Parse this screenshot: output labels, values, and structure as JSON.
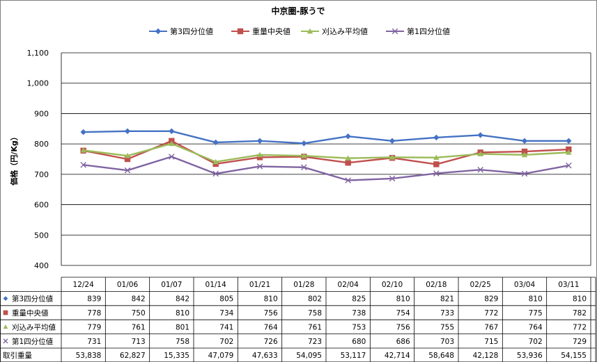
{
  "chart_data": {
    "type": "line",
    "title": "中京圏-豚うで",
    "ylabel": "価格（円/Kg）",
    "ylim": [
      400,
      1100
    ],
    "yticks": [
      400,
      500,
      600,
      700,
      800,
      900,
      1000,
      1100
    ],
    "ytick_labels": [
      "400",
      "500",
      "600",
      "700",
      "800",
      "900",
      "1,000",
      "1,100"
    ],
    "grid": true,
    "legend_position": "top",
    "categories": [
      "12/24",
      "01/06",
      "01/07",
      "01/14",
      "01/21",
      "01/28",
      "02/04",
      "02/10",
      "02/18",
      "02/25",
      "03/04",
      "03/11"
    ],
    "series": [
      {
        "name": "第3四分位値",
        "color": "#4472c4",
        "marker": "diamond",
        "values": [
          839,
          842,
          842,
          805,
          810,
          802,
          825,
          810,
          821,
          829,
          810,
          810
        ]
      },
      {
        "name": "重量中央値",
        "color": "#c0504d",
        "marker": "square",
        "values": [
          778,
          750,
          810,
          734,
          756,
          758,
          738,
          754,
          733,
          772,
          775,
          782
        ]
      },
      {
        "name": "刈込み平均値",
        "color": "#9bbb59",
        "marker": "triangle",
        "values": [
          779,
          761,
          801,
          741,
          764,
          761,
          753,
          756,
          755,
          767,
          764,
          772
        ]
      },
      {
        "name": "第1四分位値",
        "color": "#8064a2",
        "marker": "x",
        "values": [
          731,
          713,
          758,
          702,
          726,
          723,
          680,
          686,
          703,
          715,
          702,
          729
        ]
      }
    ],
    "table_extra_rows": [
      {
        "name": "取引重量",
        "values": [
          "53,838",
          "62,827",
          "15,335",
          "47,079",
          "47,633",
          "54,095",
          "53,117",
          "42,714",
          "58,648",
          "42,128",
          "53,936",
          "54,155"
        ]
      }
    ]
  }
}
